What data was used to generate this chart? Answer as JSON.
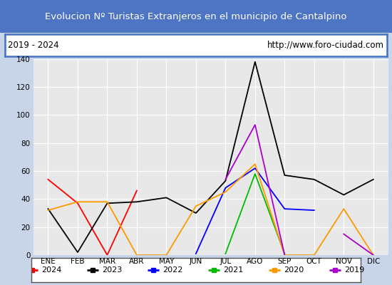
{
  "title": "Evolucion Nº Turistas Extranjeros en el municipio de Cantalpino",
  "subtitle_left": "2019 - 2024",
  "subtitle_right": "http://www.foro-ciudad.com",
  "title_bg_color": "#4e74c4",
  "title_text_color": "#ffffff",
  "subtitle_bg_color": "#ffffff",
  "outer_bg_color": "#c8d4e8",
  "plot_bg_color": "#e8e8e8",
  "months": [
    "ENE",
    "FEB",
    "MAR",
    "ABR",
    "MAY",
    "JUN",
    "JUL",
    "AGO",
    "SEP",
    "OCT",
    "NOV",
    "DIC"
  ],
  "ylim": [
    0,
    140
  ],
  "yticks": [
    0,
    20,
    40,
    60,
    80,
    100,
    120,
    140
  ],
  "series": {
    "2024": {
      "color": "#ff0000",
      "values": [
        54,
        37,
        0,
        46,
        null,
        null,
        null,
        null,
        null,
        null,
        null,
        null
      ]
    },
    "2023": {
      "color": "#000000",
      "values": [
        33,
        2,
        37,
        38,
        41,
        30,
        53,
        138,
        57,
        54,
        43,
        54
      ]
    },
    "2022": {
      "color": "#0000ff",
      "values": [
        null,
        null,
        null,
        null,
        null,
        1,
        48,
        62,
        33,
        32,
        null,
        null
      ]
    },
    "2021": {
      "color": "#00bb00",
      "values": [
        null,
        null,
        null,
        null,
        null,
        null,
        1,
        58,
        1,
        null,
        null,
        null
      ]
    },
    "2020": {
      "color": "#ff9900",
      "values": [
        32,
        38,
        38,
        0,
        0,
        35,
        45,
        65,
        0,
        0,
        33,
        0
      ]
    },
    "2019": {
      "color": "#aa00cc",
      "values": [
        null,
        null,
        null,
        null,
        null,
        null,
        54,
        93,
        0,
        null,
        15,
        0
      ]
    }
  },
  "legend_order": [
    "2024",
    "2023",
    "2022",
    "2021",
    "2020",
    "2019"
  ]
}
